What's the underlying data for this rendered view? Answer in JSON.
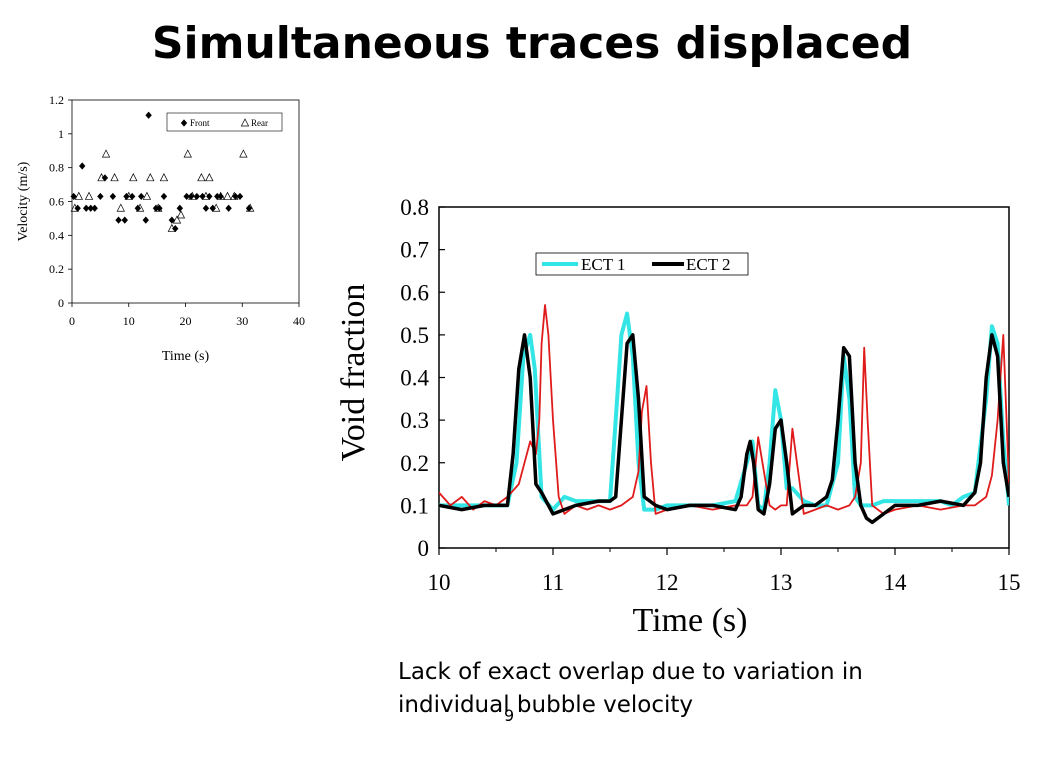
{
  "slide": {
    "title": "Simultaneous traces displaced",
    "caption_line1": "Lack of exact overlap due to variation in",
    "caption_line2": "individual bubble velocity",
    "slide_number": "9"
  },
  "chart_data": [
    {
      "type": "scatter",
      "title": "",
      "xlabel": "Time (s)",
      "ylabel": "Velocity (m/s)",
      "xlim": [
        0,
        40
      ],
      "ylim": [
        0,
        1.2
      ],
      "xticks": [
        "0",
        "10",
        "20",
        "30",
        "40"
      ],
      "yticks": [
        "0",
        "0.2",
        "0.4",
        "0.6",
        "0.8",
        "1",
        "1.2"
      ],
      "grid": false,
      "legend_position": "top-right",
      "series": [
        {
          "name": "Front",
          "marker": "filled-diamond",
          "color": "#000000",
          "points": [
            [
              0.3,
              0.63
            ],
            [
              1,
              0.56
            ],
            [
              1.8,
              0.81
            ],
            [
              2.5,
              0.56
            ],
            [
              3.3,
              0.56
            ],
            [
              4,
              0.56
            ],
            [
              5,
              0.63
            ],
            [
              5.8,
              0.74
            ],
            [
              7.2,
              0.63
            ],
            [
              8.2,
              0.49
            ],
            [
              9.3,
              0.49
            ],
            [
              9.6,
              0.63
            ],
            [
              10.6,
              0.63
            ],
            [
              11.6,
              0.56
            ],
            [
              12.2,
              0.63
            ],
            [
              13,
              0.49
            ],
            [
              13.5,
              1.11
            ],
            [
              14.8,
              0.56
            ],
            [
              15.4,
              0.56
            ],
            [
              16.2,
              0.63
            ],
            [
              17.6,
              0.49
            ],
            [
              18.2,
              0.44
            ],
            [
              19,
              0.56
            ],
            [
              20.2,
              0.63
            ],
            [
              21,
              0.63
            ],
            [
              22,
              0.63
            ],
            [
              23,
              0.63
            ],
            [
              23.6,
              0.56
            ],
            [
              24.2,
              0.63
            ],
            [
              24.8,
              0.56
            ],
            [
              25.6,
              0.63
            ],
            [
              26.2,
              0.63
            ],
            [
              27.6,
              0.56
            ],
            [
              28.8,
              0.63
            ],
            [
              29.6,
              0.63
            ],
            [
              31.2,
              0.56
            ]
          ]
        },
        {
          "name": "Rear",
          "marker": "open-triangle",
          "color": "#000000",
          "points": [
            [
              0.5,
              0.56
            ],
            [
              1.2,
              0.63
            ],
            [
              3,
              0.63
            ],
            [
              5.2,
              0.74
            ],
            [
              6,
              0.88
            ],
            [
              7.5,
              0.74
            ],
            [
              8.6,
              0.56
            ],
            [
              10,
              0.63
            ],
            [
              10.8,
              0.74
            ],
            [
              12,
              0.56
            ],
            [
              13.2,
              0.63
            ],
            [
              13.8,
              0.74
            ],
            [
              15.2,
              0.56
            ],
            [
              16.2,
              0.74
            ],
            [
              17.6,
              0.44
            ],
            [
              18.5,
              0.49
            ],
            [
              19.2,
              0.52
            ],
            [
              20.4,
              0.88
            ],
            [
              21.2,
              0.63
            ],
            [
              22.8,
              0.74
            ],
            [
              23.6,
              0.63
            ],
            [
              24.2,
              0.74
            ],
            [
              25.4,
              0.56
            ],
            [
              26.2,
              0.63
            ],
            [
              27.4,
              0.63
            ],
            [
              28.6,
              0.63
            ],
            [
              30.2,
              0.88
            ],
            [
              31.4,
              0.56
            ]
          ]
        }
      ]
    },
    {
      "type": "line",
      "title": "",
      "xlabel": "Time (s)",
      "ylabel": "Void fraction",
      "xlim": [
        10,
        15
      ],
      "ylim": [
        0,
        0.8
      ],
      "xticks": [
        "10",
        "11",
        "12",
        "13",
        "14",
        "15"
      ],
      "yticks": [
        "0",
        "0.1",
        "0.2",
        "0.3",
        "0.4",
        "0.5",
        "0.6",
        "0.7",
        "0.8"
      ],
      "grid": false,
      "legend_position": "top-right",
      "series": [
        {
          "name": "ECT 1",
          "color": "#33e5e5",
          "x": [
            10,
            10.3,
            10.6,
            10.68,
            10.74,
            10.8,
            10.84,
            10.9,
            11,
            11.1,
            11.2,
            11.4,
            11.5,
            11.55,
            11.6,
            11.65,
            11.7,
            11.75,
            11.8,
            11.9,
            12,
            12.2,
            12.4,
            12.6,
            12.7,
            12.75,
            12.8,
            12.85,
            12.9,
            12.95,
            13,
            13.05,
            13.1,
            13.2,
            13.3,
            13.4,
            13.5,
            13.55,
            13.6,
            13.65,
            13.7,
            13.8,
            13.9,
            14,
            14.2,
            14.4,
            14.5,
            14.6,
            14.7,
            14.8,
            14.85,
            14.9,
            14.95,
            15
          ],
          "values": [
            0.1,
            0.1,
            0.1,
            0.2,
            0.45,
            0.5,
            0.42,
            0.12,
            0.09,
            0.12,
            0.11,
            0.11,
            0.11,
            0.3,
            0.5,
            0.55,
            0.45,
            0.2,
            0.09,
            0.09,
            0.1,
            0.1,
            0.1,
            0.11,
            0.2,
            0.25,
            0.1,
            0.09,
            0.2,
            0.37,
            0.3,
            0.14,
            0.14,
            0.11,
            0.1,
            0.1,
            0.2,
            0.45,
            0.35,
            0.12,
            0.1,
            0.1,
            0.11,
            0.11,
            0.11,
            0.11,
            0.1,
            0.12,
            0.13,
            0.35,
            0.52,
            0.48,
            0.25,
            0.1
          ]
        },
        {
          "name": "ECT 2",
          "color": "#000000",
          "x": [
            10,
            10.2,
            10.4,
            10.6,
            10.65,
            10.7,
            10.75,
            10.8,
            10.85,
            10.9,
            11,
            11.1,
            11.2,
            11.4,
            11.5,
            11.55,
            11.6,
            11.65,
            11.7,
            11.75,
            11.8,
            11.9,
            12,
            12.2,
            12.4,
            12.6,
            12.65,
            12.7,
            12.73,
            12.76,
            12.8,
            12.85,
            12.9,
            12.95,
            13,
            13.05,
            13.1,
            13.2,
            13.3,
            13.4,
            13.45,
            13.5,
            13.55,
            13.6,
            13.65,
            13.7,
            13.75,
            13.8,
            13.9,
            14,
            14.2,
            14.4,
            14.6,
            14.7,
            14.75,
            14.8,
            14.85,
            14.9,
            14.95,
            15
          ],
          "values": [
            0.1,
            0.09,
            0.1,
            0.1,
            0.22,
            0.42,
            0.5,
            0.4,
            0.15,
            0.13,
            0.08,
            0.09,
            0.1,
            0.11,
            0.11,
            0.12,
            0.3,
            0.48,
            0.5,
            0.35,
            0.12,
            0.1,
            0.09,
            0.1,
            0.1,
            0.09,
            0.12,
            0.22,
            0.25,
            0.2,
            0.09,
            0.08,
            0.15,
            0.28,
            0.3,
            0.2,
            0.08,
            0.1,
            0.1,
            0.12,
            0.16,
            0.3,
            0.47,
            0.45,
            0.2,
            0.1,
            0.07,
            0.06,
            0.08,
            0.1,
            0.1,
            0.11,
            0.1,
            0.13,
            0.2,
            0.4,
            0.5,
            0.45,
            0.2,
            0.12
          ]
        },
        {
          "name": "",
          "color": "#e01b1b",
          "x": [
            10,
            10.1,
            10.2,
            10.3,
            10.4,
            10.5,
            10.6,
            10.7,
            10.75,
            10.8,
            10.85,
            10.88,
            10.9,
            10.93,
            10.96,
            11,
            11.05,
            11.1,
            11.2,
            11.3,
            11.4,
            11.5,
            11.6,
            11.7,
            11.75,
            11.78,
            11.82,
            11.86,
            11.9,
            12,
            12.2,
            12.4,
            12.6,
            12.7,
            12.75,
            12.8,
            12.85,
            12.9,
            12.95,
            13,
            13.05,
            13.1,
            13.15,
            13.2,
            13.3,
            13.4,
            13.5,
            13.6,
            13.65,
            13.7,
            13.73,
            13.76,
            13.8,
            13.9,
            14,
            14.2,
            14.4,
            14.6,
            14.7,
            14.8,
            14.85,
            14.9,
            14.95,
            15
          ],
          "values": [
            0.13,
            0.1,
            0.12,
            0.09,
            0.11,
            0.1,
            0.12,
            0.15,
            0.2,
            0.25,
            0.22,
            0.3,
            0.48,
            0.57,
            0.5,
            0.3,
            0.12,
            0.08,
            0.1,
            0.09,
            0.1,
            0.09,
            0.1,
            0.12,
            0.18,
            0.32,
            0.38,
            0.2,
            0.08,
            0.09,
            0.1,
            0.09,
            0.1,
            0.1,
            0.12,
            0.26,
            0.18,
            0.1,
            0.09,
            0.1,
            0.1,
            0.28,
            0.18,
            0.08,
            0.09,
            0.1,
            0.09,
            0.1,
            0.12,
            0.2,
            0.47,
            0.3,
            0.1,
            0.08,
            0.09,
            0.1,
            0.09,
            0.1,
            0.1,
            0.12,
            0.17,
            0.3,
            0.5,
            0.15
          ]
        }
      ]
    }
  ]
}
